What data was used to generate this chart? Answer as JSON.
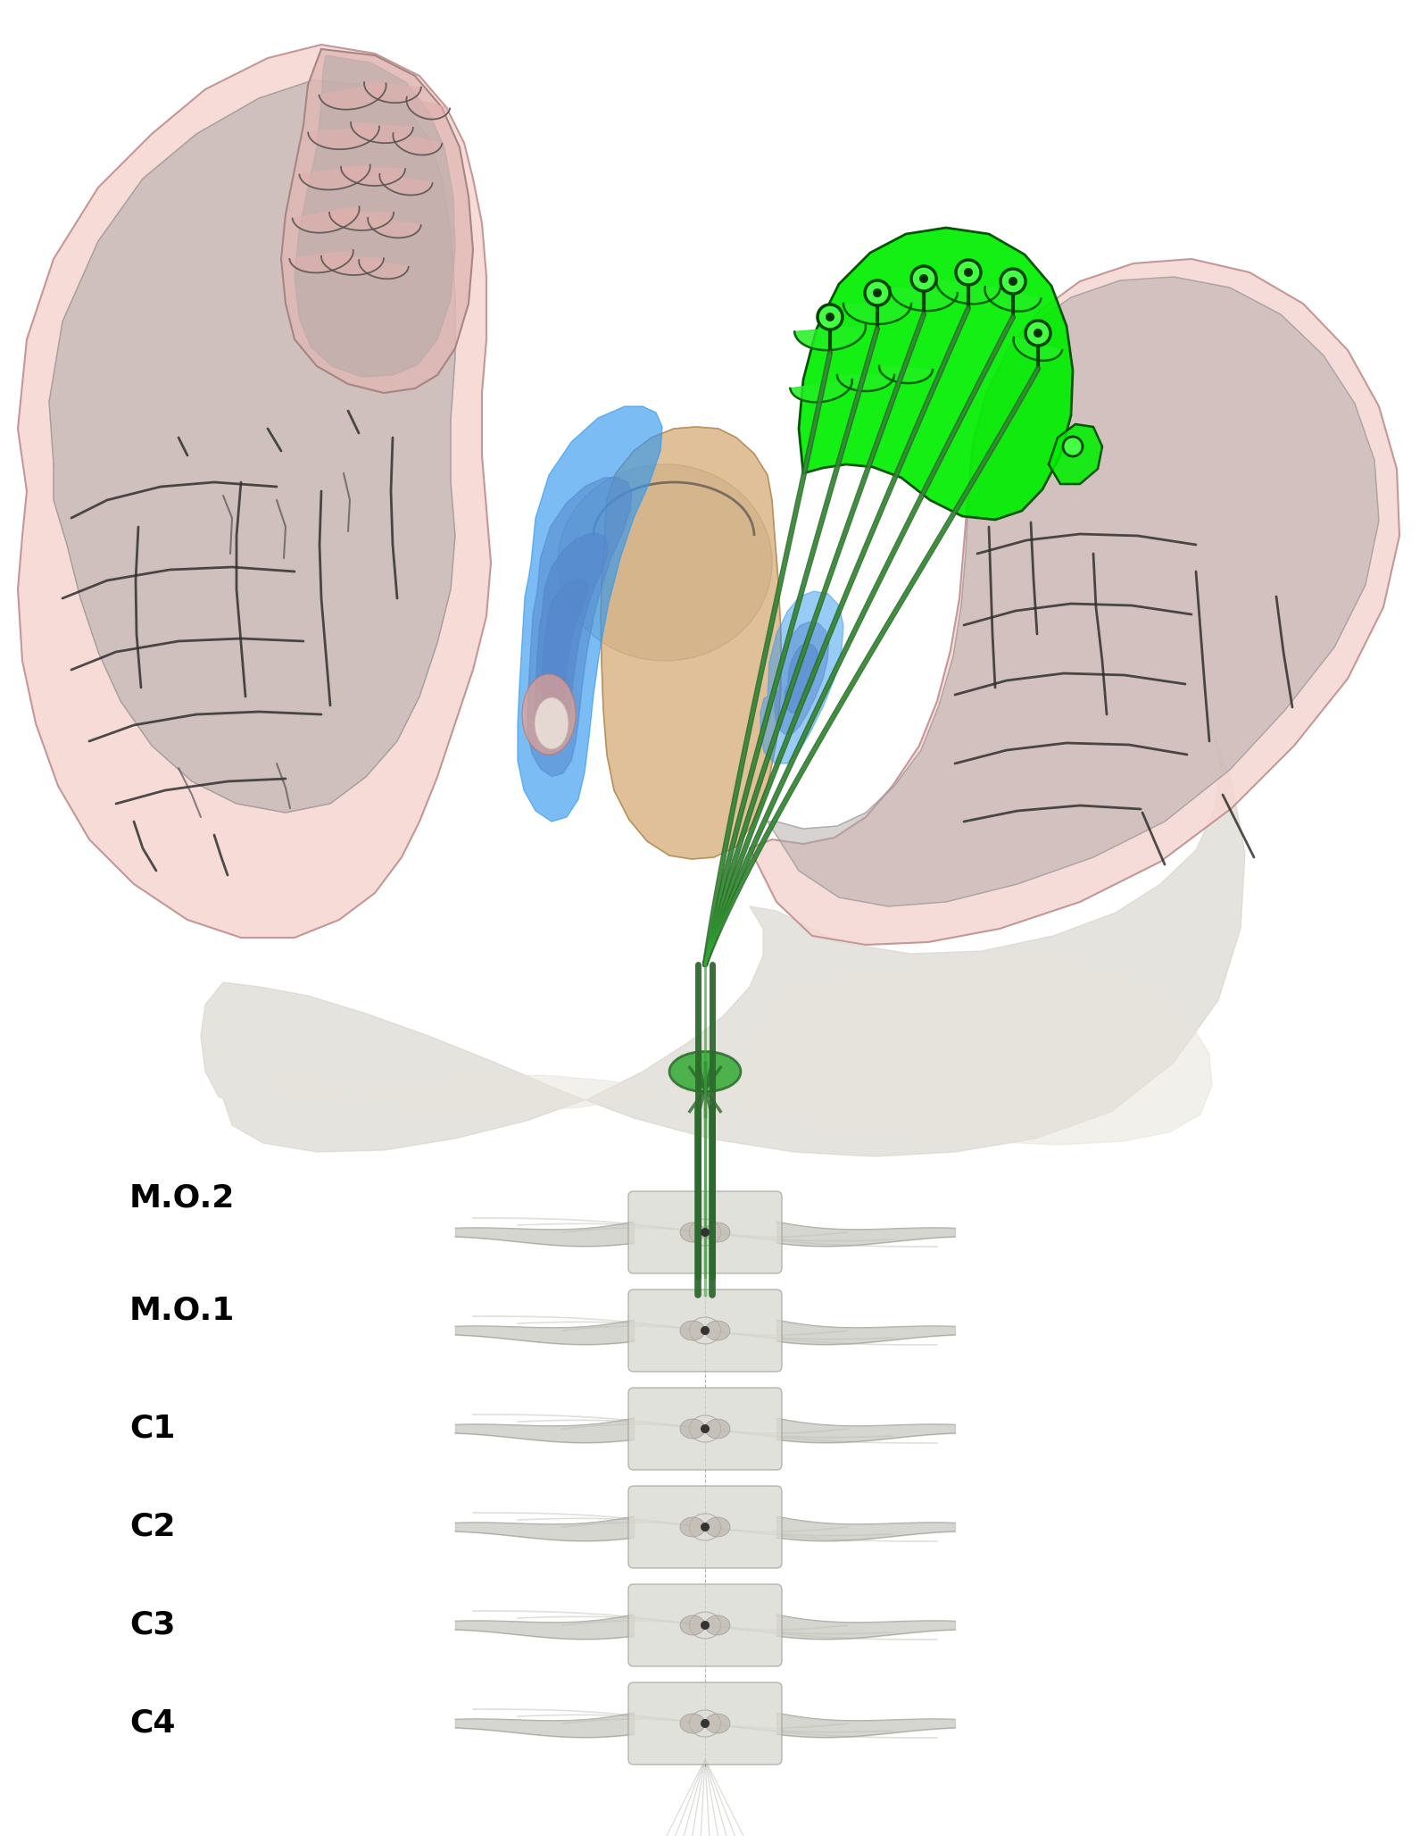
{
  "bg_color": "#ffffff",
  "brain_pink_light": "#f5d5d0",
  "brain_pink": "#e8c0bc",
  "brain_gray": "#b0a8a8",
  "brain_gray_dark": "#909090",
  "green_bright": "#00ee00",
  "green_mid": "#33aa33",
  "green_dark": "#2d6a2d",
  "blue_bright": "#3399ee",
  "blue_mid": "#5588cc",
  "blue_dark": "#2255aa",
  "orange_tan": "#d4a870",
  "orange_light": "#e8c898",
  "spine_light": "#d8d8d0",
  "spine_mid": "#c0c0b8",
  "spine_dark": "#a0a098",
  "labels": [
    "M.O.2",
    "M.O.1",
    "C1",
    "C2",
    "C3",
    "C4"
  ],
  "label_fontsize": 26,
  "fig_width": 16.0,
  "fig_height": 20.56
}
